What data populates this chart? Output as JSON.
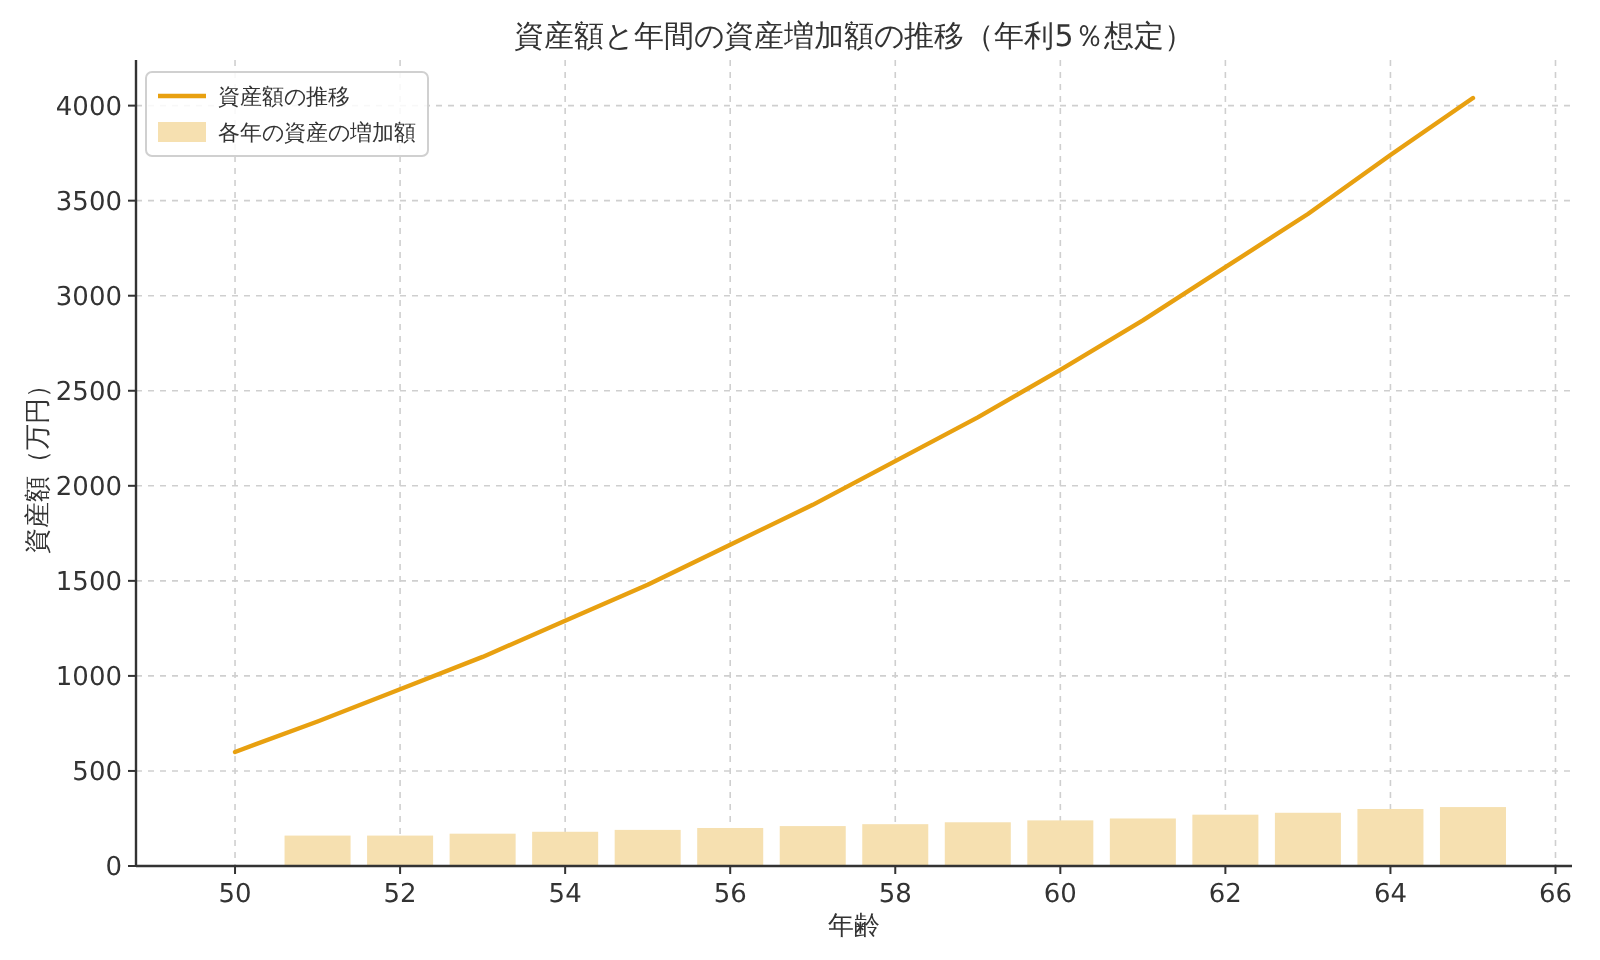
{
  "chart_data": {
    "type": "line",
    "title": "資産額と年間の資産増加額の推移（年利5％想定）",
    "xlabel": "年齢",
    "ylabel": "資産額（万円）",
    "xlim": [
      48.8,
      66.2
    ],
    "xticks": [
      50,
      52,
      54,
      56,
      58,
      60,
      62,
      64,
      66
    ],
    "ylim": [
      0,
      4240
    ],
    "yticks": [
      0,
      500,
      1000,
      1500,
      2000,
      2500,
      3000,
      3500,
      4000
    ],
    "grid": true,
    "legend": "top left",
    "series": [
      {
        "name": "資産額の推移",
        "color": "#e8a010",
        "x": [
          50,
          51,
          52,
          53,
          54,
          55,
          56,
          57,
          58,
          59,
          60,
          61,
          62,
          63,
          64,
          65
        ],
        "values": [
          600,
          760,
          930,
          1100,
          1290,
          1480,
          1690,
          1900,
          2130,
          2360,
          2610,
          2870,
          3150,
          3430,
          3740,
          4040
        ]
      },
      {
        "name": "各年の資産の増加額",
        "type": "bar",
        "color": "#f6e0b0",
        "x": [
          51,
          52,
          53,
          54,
          55,
          56,
          57,
          58,
          59,
          60,
          61,
          62,
          63,
          64,
          65
        ],
        "values": [
          160,
          160,
          170,
          180,
          190,
          200,
          210,
          220,
          230,
          240,
          250,
          270,
          280,
          300,
          310
        ]
      }
    ]
  }
}
